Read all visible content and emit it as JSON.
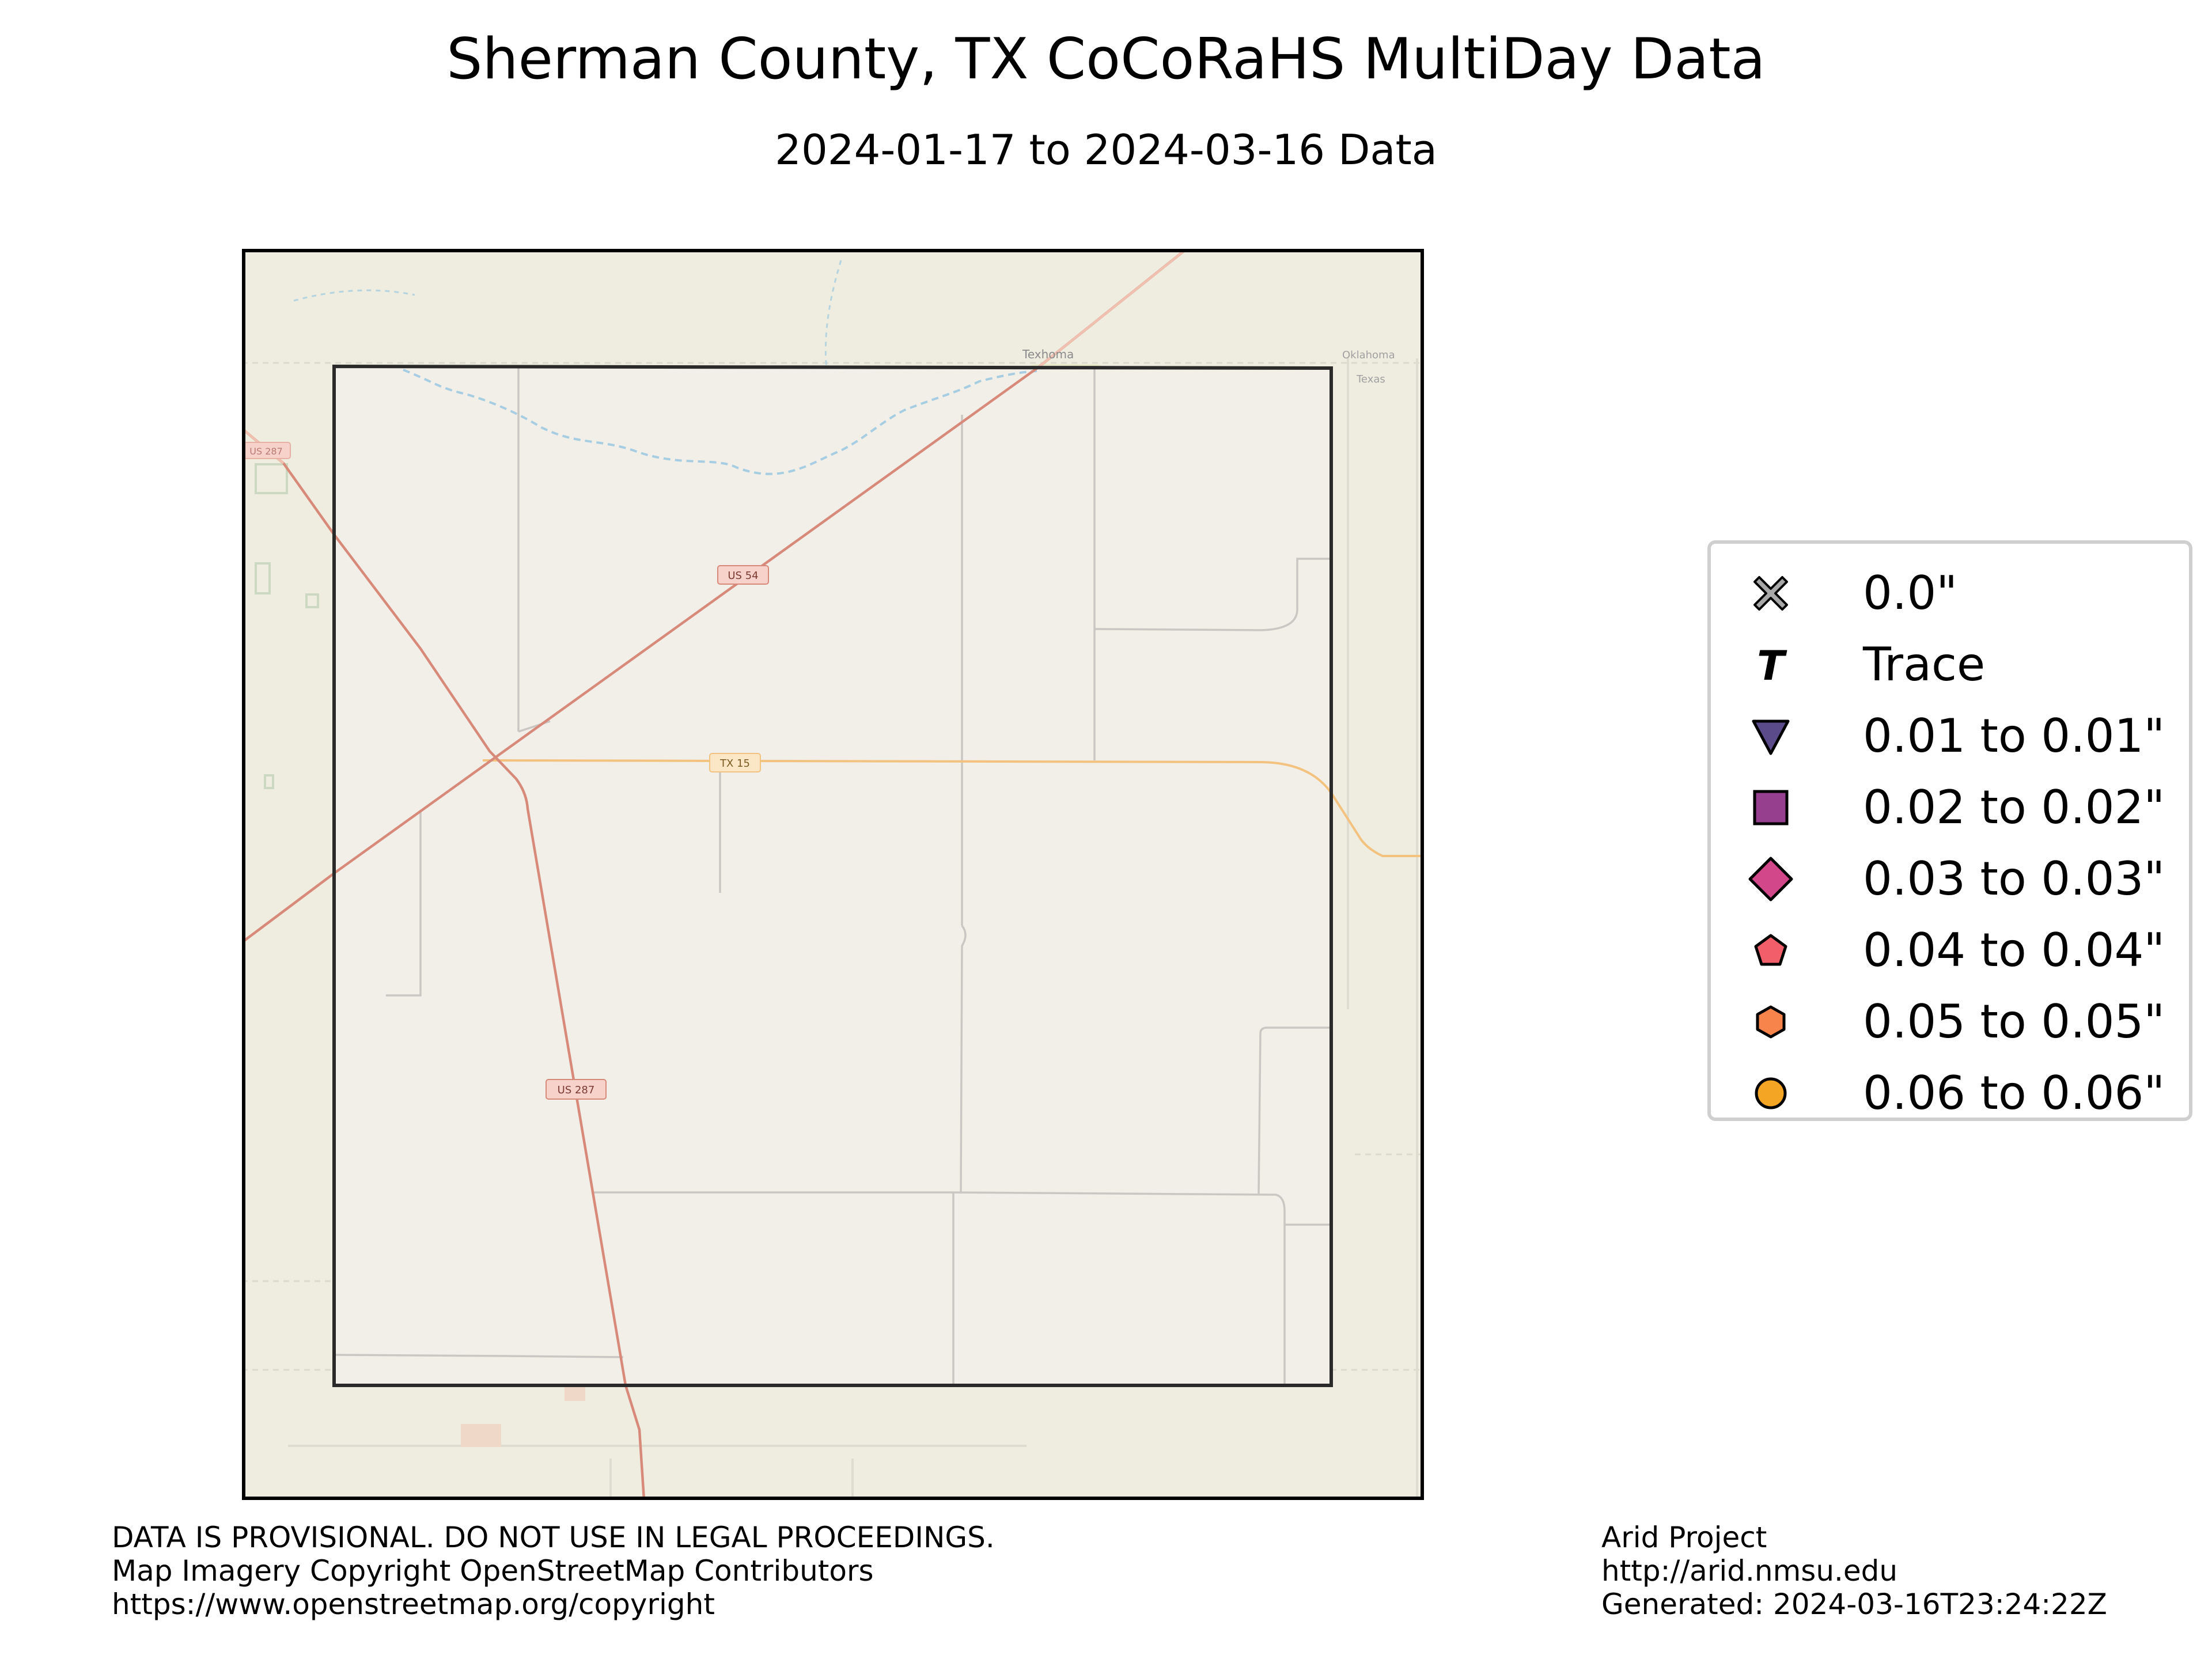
{
  "title": "Sherman County, TX CoCoRaHS MultiDay Data",
  "subtitle": "2024-01-17 to 2024-03-16 Data",
  "map": {
    "labels": {
      "town": "Texhoma",
      "state_upper": "Oklahoma",
      "state_lower": "Texas",
      "route_us54": "US 54",
      "route_tx15": "TX 15",
      "route_us287": "US 287",
      "route_us287_offmap": "US 287"
    },
    "colors": {
      "background": "#eeede0",
      "county_fill": "#f2efe9",
      "county_border": "#2a2a2a",
      "us_highway": "#d88a7a",
      "state_highway": "#f2c27e",
      "minor_road": "#c9c5c2",
      "water": "#a6cde2"
    }
  },
  "legend": [
    {
      "icon": "x-marker-icon",
      "label": "0.0\"",
      "color": "#a8a8a8"
    },
    {
      "icon": "trace-t-icon",
      "label": "Trace",
      "color": "#000000"
    },
    {
      "icon": "triangle-down-icon",
      "label": "0.01 to 0.01\"",
      "color": "#5b4b8a"
    },
    {
      "icon": "square-icon",
      "label": "0.02 to 0.02\"",
      "color": "#963f8e"
    },
    {
      "icon": "diamond-icon",
      "label": "0.03 to 0.03\"",
      "color": "#d1478a"
    },
    {
      "icon": "pentagon-icon",
      "label": "0.04 to 0.04\"",
      "color": "#f25e6a"
    },
    {
      "icon": "hexagon-icon",
      "label": "0.05 to 0.05\"",
      "color": "#f7844a"
    },
    {
      "icon": "circle-icon",
      "label": "0.06 to 0.06\"",
      "color": "#f5a524"
    }
  ],
  "footer_left": [
    "DATA IS PROVISIONAL. DO NOT USE IN LEGAL PROCEEDINGS.",
    "Map Imagery Copyright OpenStreetMap Contributors",
    "https://www.openstreetmap.org/copyright"
  ],
  "footer_right": [
    "Arid Project",
    "http://arid.nmsu.edu",
    "Generated: 2024-03-16T23:24:22Z"
  ]
}
